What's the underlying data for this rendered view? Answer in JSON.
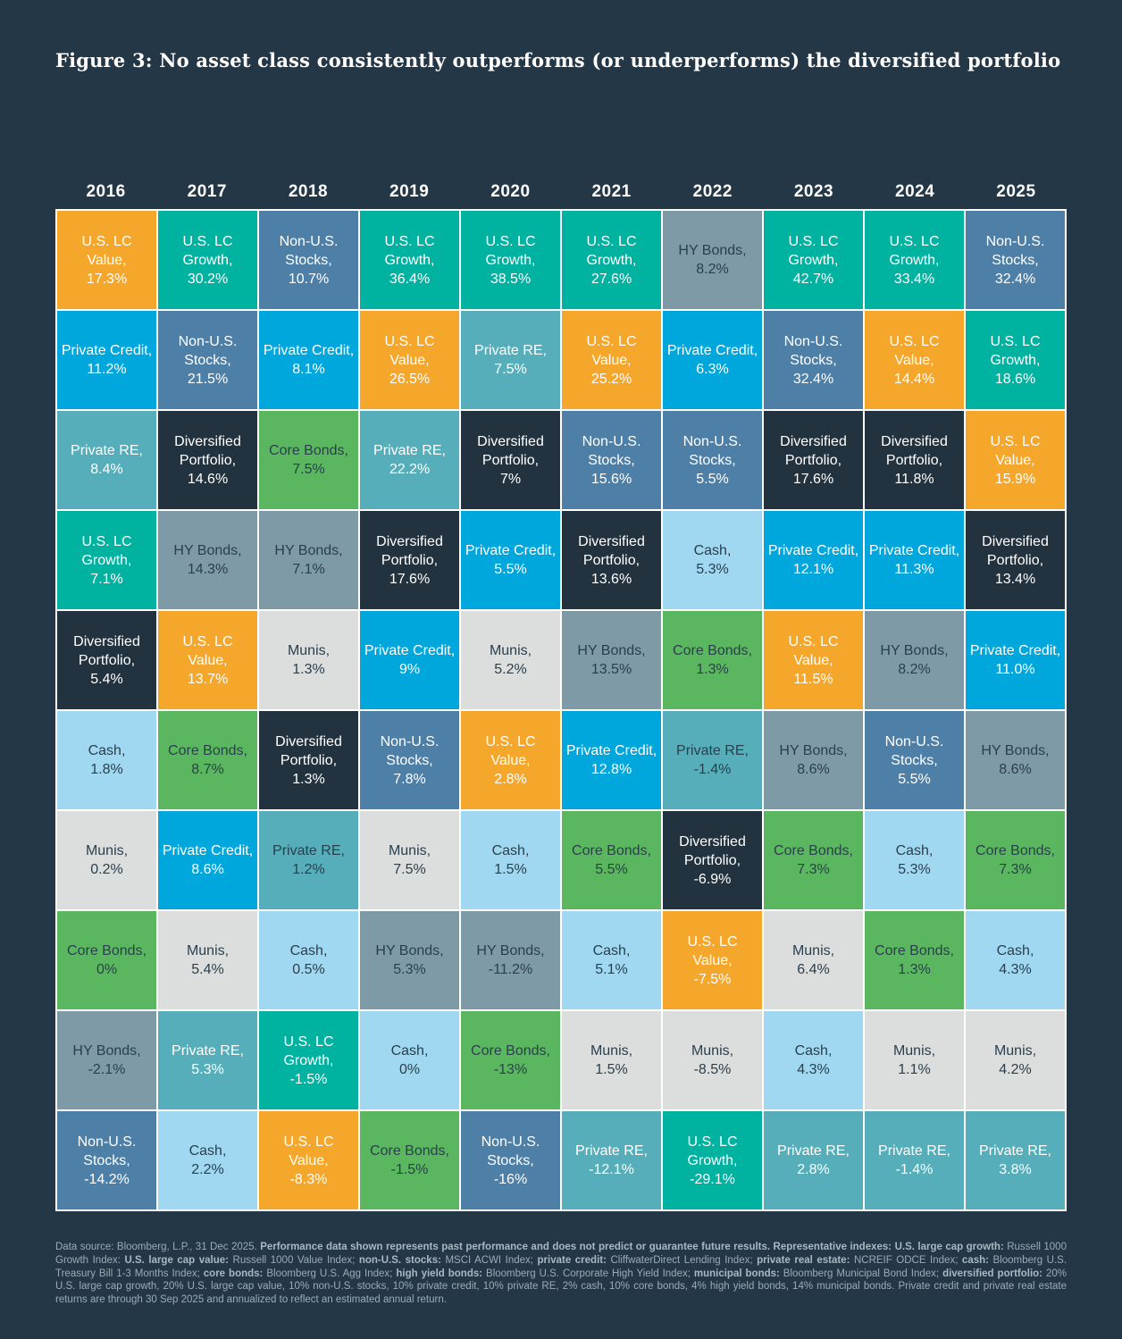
{
  "colors": {
    "page_bg": "#243746",
    "grid_line": "#FFFFFF",
    "title_text": "#FFFFFF",
    "year_text": "#FFFFFF",
    "light_cell_text": "#FFFFFF",
    "dark_cell_text": "#2A3F4D",
    "footnote_text": "#9BACB6",
    "footnote_bold_text": "#A9B8C2"
  },
  "chart_data": {
    "type": "table",
    "title": "Figure 3: No asset class consistently outperforms (or underperforms) the diversified portfolio",
    "asset_styles": {
      "value": {
        "label": "U.S. LC Value",
        "bg": "#F5A72B",
        "text": "light"
      },
      "growth": {
        "label": "U.S. LC Growth",
        "bg": "#00B2A0",
        "text": "light"
      },
      "nonus": {
        "label": "Non-U.S. Stocks",
        "bg": "#4E80A7",
        "text": "light"
      },
      "credit": {
        "label": "Private Credit",
        "bg": "#00A7DD",
        "text": "light"
      },
      "re": {
        "label": "Private RE",
        "bg": "#55AEB9",
        "text": "light"
      },
      "div": {
        "label": "Diversified Portfolio",
        "bg": "#22333F",
        "text": "light"
      },
      "core": {
        "label": "Core Bonds",
        "bg": "#5BB75F",
        "text": "dark"
      },
      "hy": {
        "label": "HY Bonds",
        "bg": "#7E9AA6",
        "text": "dark"
      },
      "munis": {
        "label": "Munis",
        "bg": "#DCDEDD",
        "text": "dark"
      },
      "cash": {
        "label": "Cash",
        "bg": "#9FD8F0",
        "text": "dark"
      }
    },
    "columns": [
      {
        "year": "2016",
        "cells": [
          {
            "key": "value",
            "value": "17.3%"
          },
          {
            "key": "credit",
            "value": "11.2%"
          },
          {
            "key": "re",
            "value": "8.4%"
          },
          {
            "key": "growth",
            "value": "7.1%"
          },
          {
            "key": "div",
            "value": "5.4%"
          },
          {
            "key": "cash",
            "value": "1.8%"
          },
          {
            "key": "munis",
            "value": "0.2%"
          },
          {
            "key": "core",
            "value": "0%"
          },
          {
            "key": "hy",
            "value": "-2.1%"
          },
          {
            "key": "nonus",
            "value": "-14.2%"
          }
        ]
      },
      {
        "year": "2017",
        "cells": [
          {
            "key": "growth",
            "value": "30.2%"
          },
          {
            "key": "nonus",
            "value": "21.5%"
          },
          {
            "key": "div",
            "value": "14.6%"
          },
          {
            "key": "hy",
            "value": "14.3%"
          },
          {
            "key": "value",
            "value": "13.7%"
          },
          {
            "key": "core",
            "value": "8.7%"
          },
          {
            "key": "credit",
            "value": "8.6%"
          },
          {
            "key": "munis",
            "value": "5.4%"
          },
          {
            "key": "re",
            "value": "5.3%"
          },
          {
            "key": "cash",
            "value": "2.2%"
          }
        ]
      },
      {
        "year": "2018",
        "cells": [
          {
            "key": "nonus",
            "value": "10.7%"
          },
          {
            "key": "credit",
            "value": "8.1%"
          },
          {
            "key": "core",
            "value": "7.5%"
          },
          {
            "key": "hy",
            "value": "7.1%"
          },
          {
            "key": "munis",
            "value": "1.3%"
          },
          {
            "key": "div",
            "value": "1.3%"
          },
          {
            "key": "re",
            "value": "1.2%",
            "dark_text": true
          },
          {
            "key": "cash",
            "value": "0.5%"
          },
          {
            "key": "growth",
            "value": "-1.5%"
          },
          {
            "key": "value",
            "value": "-8.3%"
          }
        ]
      },
      {
        "year": "2019",
        "cells": [
          {
            "key": "growth",
            "value": "36.4%"
          },
          {
            "key": "value",
            "value": "26.5%"
          },
          {
            "key": "re",
            "value": "22.2%"
          },
          {
            "key": "div",
            "value": "17.6%"
          },
          {
            "key": "credit",
            "value": "9%"
          },
          {
            "key": "nonus",
            "value": "7.8%"
          },
          {
            "key": "munis",
            "value": "7.5%"
          },
          {
            "key": "hy",
            "value": "5.3%"
          },
          {
            "key": "cash",
            "value": "0%"
          },
          {
            "key": "core",
            "value": "-1.5%"
          }
        ]
      },
      {
        "year": "2020",
        "cells": [
          {
            "key": "growth",
            "value": "38.5%"
          },
          {
            "key": "re",
            "value": "7.5%"
          },
          {
            "key": "div",
            "value": "7%"
          },
          {
            "key": "credit",
            "value": "5.5%"
          },
          {
            "key": "munis",
            "value": "5.2%"
          },
          {
            "key": "value",
            "value": "2.8%"
          },
          {
            "key": "cash",
            "value": "1.5%"
          },
          {
            "key": "hy",
            "value": "-11.2%"
          },
          {
            "key": "core",
            "value": "-13%"
          },
          {
            "key": "nonus",
            "value": "-16%"
          }
        ]
      },
      {
        "year": "2021",
        "cells": [
          {
            "key": "growth",
            "value": "27.6%"
          },
          {
            "key": "value",
            "value": "25.2%"
          },
          {
            "key": "nonus",
            "value": "15.6%"
          },
          {
            "key": "div",
            "value": "13.6%"
          },
          {
            "key": "hy",
            "value": "13.5%"
          },
          {
            "key": "credit",
            "value": "12.8%"
          },
          {
            "key": "core",
            "value": "5.5%"
          },
          {
            "key": "cash",
            "value": "5.1%"
          },
          {
            "key": "munis",
            "value": "1.5%"
          },
          {
            "key": "re",
            "value": "-12.1%"
          }
        ]
      },
      {
        "year": "2022",
        "cells": [
          {
            "key": "hy",
            "value": "8.2%"
          },
          {
            "key": "credit",
            "value": "6.3%"
          },
          {
            "key": "nonus",
            "value": "5.5%"
          },
          {
            "key": "cash",
            "value": "5.3%"
          },
          {
            "key": "core",
            "value": "1.3%"
          },
          {
            "key": "re",
            "value": "-1.4%",
            "dark_text": true
          },
          {
            "key": "div",
            "value": "-6.9%"
          },
          {
            "key": "value",
            "value": "-7.5%"
          },
          {
            "key": "munis",
            "value": "-8.5%"
          },
          {
            "key": "growth",
            "value": "-29.1%"
          }
        ]
      },
      {
        "year": "2023",
        "cells": [
          {
            "key": "growth",
            "value": "42.7%"
          },
          {
            "key": "nonus",
            "value": "32.4%"
          },
          {
            "key": "div",
            "value": "17.6%"
          },
          {
            "key": "credit",
            "value": "12.1%"
          },
          {
            "key": "value",
            "value": "11.5%"
          },
          {
            "key": "hy",
            "value": "8.6%"
          },
          {
            "key": "core",
            "value": "7.3%"
          },
          {
            "key": "munis",
            "value": "6.4%"
          },
          {
            "key": "cash",
            "value": "4.3%"
          },
          {
            "key": "re",
            "value": "2.8%"
          }
        ]
      },
      {
        "year": "2024",
        "cells": [
          {
            "key": "growth",
            "value": "33.4%"
          },
          {
            "key": "value",
            "value": "14.4%"
          },
          {
            "key": "div",
            "value": "11.8%"
          },
          {
            "key": "credit",
            "value": "11.3%"
          },
          {
            "key": "hy",
            "value": "8.2%"
          },
          {
            "key": "nonus",
            "value": "5.5%"
          },
          {
            "key": "cash",
            "value": "5.3%"
          },
          {
            "key": "core",
            "value": "1.3%"
          },
          {
            "key": "munis",
            "value": "1.1%"
          },
          {
            "key": "re",
            "value": "-1.4%"
          }
        ]
      },
      {
        "year": "2025",
        "cells": [
          {
            "key": "nonus",
            "value": "32.4%"
          },
          {
            "key": "growth",
            "value": "18.6%"
          },
          {
            "key": "value",
            "value": "15.9%"
          },
          {
            "key": "div",
            "value": "13.4%"
          },
          {
            "key": "credit",
            "value": "11.0%"
          },
          {
            "key": "hy",
            "value": "8.6%"
          },
          {
            "key": "core",
            "value": "7.3%"
          },
          {
            "key": "cash",
            "value": "4.3%"
          },
          {
            "key": "munis",
            "value": "4.2%"
          },
          {
            "key": "re",
            "value": "3.8%"
          }
        ]
      }
    ]
  },
  "footnote": {
    "segments": [
      {
        "text": "Data source: Bloomberg, L.P., 31 Dec 2025. ",
        "bold": false
      },
      {
        "text": "Performance data shown represents past performance and does not predict or guarantee future results. Representative indexes: U.S. large cap growth:",
        "bold": true
      },
      {
        "text": " Russell 1000 Growth Index: ",
        "bold": false
      },
      {
        "text": "U.S. large cap value:",
        "bold": true
      },
      {
        "text": " Russell 1000 Value Index; ",
        "bold": false
      },
      {
        "text": "non-U.S. stocks:",
        "bold": true
      },
      {
        "text": " MSCI ACWI Index; ",
        "bold": false
      },
      {
        "text": "private credit:",
        "bold": true
      },
      {
        "text": " CliffwaterDirect Lending Index; ",
        "bold": false
      },
      {
        "text": "private real estate:",
        "bold": true
      },
      {
        "text": " NCREIF ODCE Index; ",
        "bold": false
      },
      {
        "text": "cash:",
        "bold": true
      },
      {
        "text": " Bloomberg U.S. Treasury Bill 1-3 Months Index; ",
        "bold": false
      },
      {
        "text": "core bonds:",
        "bold": true
      },
      {
        "text": " Bloomberg U.S. Agg Index; ",
        "bold": false
      },
      {
        "text": "high yield bonds:",
        "bold": true
      },
      {
        "text": " Bloomberg U.S. Corporate High Yield Index; ",
        "bold": false
      },
      {
        "text": "municipal bonds:",
        "bold": true
      },
      {
        "text": " Bloomberg Municipal Bond Index; ",
        "bold": false
      },
      {
        "text": "diversified portfolio:",
        "bold": true
      },
      {
        "text": " 20% U.S. large cap growth, 20% U.S. large cap value, 10% non-U.S. stocks, 10% private credit, 10% private RE, 2% cash, 10% core bonds, 4% high yield bonds, 14% municipal bonds. Private credit and private real estate returns are through 30 Sep 2025 and annualized to reflect an estimated annual return.",
        "bold": false
      }
    ]
  }
}
